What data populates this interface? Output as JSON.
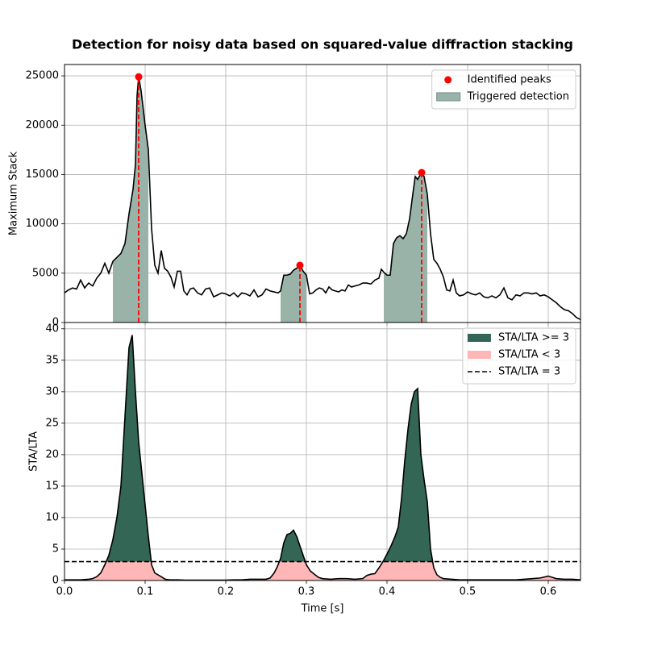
{
  "chart_data": [
    {
      "type": "line",
      "title": "Detection for noisy data based on squared-value diffraction stacking",
      "ylabel": "Maximum Stack",
      "x": [
        0.0,
        0.005,
        0.01,
        0.015,
        0.02,
        0.025,
        0.03,
        0.035,
        0.04,
        0.045,
        0.05,
        0.055,
        0.06,
        0.065,
        0.07,
        0.075,
        0.08,
        0.085,
        0.088,
        0.09,
        0.092,
        0.095,
        0.1,
        0.104,
        0.108,
        0.112,
        0.116,
        0.12,
        0.124,
        0.128,
        0.132,
        0.136,
        0.14,
        0.144,
        0.148,
        0.152,
        0.156,
        0.16,
        0.165,
        0.17,
        0.175,
        0.18,
        0.185,
        0.19,
        0.195,
        0.2,
        0.205,
        0.21,
        0.215,
        0.22,
        0.225,
        0.23,
        0.235,
        0.24,
        0.245,
        0.25,
        0.255,
        0.26,
        0.265,
        0.268,
        0.272,
        0.276,
        0.28,
        0.284,
        0.288,
        0.292,
        0.296,
        0.3,
        0.304,
        0.308,
        0.312,
        0.316,
        0.32,
        0.324,
        0.328,
        0.332,
        0.336,
        0.34,
        0.344,
        0.348,
        0.352,
        0.356,
        0.36,
        0.365,
        0.37,
        0.375,
        0.38,
        0.385,
        0.39,
        0.393,
        0.396,
        0.4,
        0.404,
        0.408,
        0.412,
        0.416,
        0.42,
        0.424,
        0.428,
        0.432,
        0.435,
        0.438,
        0.443,
        0.446,
        0.45,
        0.454,
        0.458,
        0.462,
        0.466,
        0.47,
        0.474,
        0.478,
        0.482,
        0.486,
        0.49,
        0.495,
        0.5,
        0.505,
        0.51,
        0.515,
        0.52,
        0.525,
        0.53,
        0.535,
        0.54,
        0.545,
        0.55,
        0.555,
        0.56,
        0.565,
        0.57,
        0.575,
        0.58,
        0.585,
        0.59,
        0.595,
        0.6,
        0.605,
        0.61,
        0.615,
        0.62,
        0.625,
        0.63,
        0.635,
        0.64
      ],
      "values": [
        3000,
        3300,
        3500,
        3400,
        4300,
        3500,
        4000,
        3700,
        4500,
        5000,
        6000,
        5000,
        6200,
        6600,
        7000,
        8000,
        11000,
        13500,
        16000,
        23000,
        24900,
        23500,
        20000,
        17500,
        9500,
        5800,
        5000,
        7300,
        5500,
        5200,
        4600,
        3600,
        5200,
        5200,
        3200,
        2800,
        3400,
        3500,
        3000,
        2800,
        3400,
        3500,
        2600,
        2800,
        3000,
        2900,
        2700,
        3000,
        2600,
        3000,
        2900,
        2700,
        3300,
        2600,
        2800,
        3400,
        3200,
        3100,
        3000,
        3200,
        4800,
        4800,
        4900,
        5300,
        5500,
        5800,
        5200,
        4800,
        2900,
        3000,
        3300,
        3500,
        3400,
        3000,
        3600,
        3300,
        3200,
        3100,
        3300,
        3200,
        3800,
        3600,
        3700,
        3800,
        4000,
        4000,
        3900,
        4300,
        4500,
        5400,
        5100,
        4800,
        4800,
        8000,
        8600,
        8800,
        8500,
        9000,
        10500,
        13000,
        14800,
        14500,
        15200,
        14800,
        13000,
        9000,
        6400,
        6000,
        5400,
        4600,
        3300,
        3200,
        4300,
        3000,
        2700,
        2800,
        3100,
        2900,
        2800,
        3000,
        2600,
        2500,
        2700,
        2500,
        2800,
        3500,
        2500,
        2300,
        2800,
        2700,
        3000,
        3000,
        2900,
        3000,
        2700,
        2800,
        2600,
        2300,
        2000,
        1600,
        1300,
        1200,
        900,
        500,
        300
      ],
      "color": "#000000",
      "peaks": {
        "name": "Identified peaks",
        "color": "#ff0000",
        "x": [
          0.092,
          0.292,
          0.443
        ],
        "values": [
          24900,
          5800,
          15200
        ]
      },
      "detections": {
        "name": "Triggered detection",
        "color": "#9ab3a8",
        "spans": [
          [
            0.06,
            0.104
          ],
          [
            0.268,
            0.3
          ],
          [
            0.396,
            0.45
          ]
        ]
      },
      "xlim": [
        0,
        0.64
      ],
      "xticks": [
        0,
        0.1,
        0.2,
        0.3,
        0.4,
        0.5,
        0.6
      ],
      "ylim": [
        0,
        26150
      ],
      "yticks": [
        0,
        5000,
        10000,
        15000,
        20000,
        25000
      ],
      "grid": true,
      "legend": "upper right"
    },
    {
      "type": "area",
      "xlabel": "Time [s]",
      "ylabel": "STA/LTA",
      "x": [
        0.0,
        0.01,
        0.02,
        0.03,
        0.035,
        0.04,
        0.045,
        0.05,
        0.055,
        0.06,
        0.065,
        0.07,
        0.075,
        0.08,
        0.084,
        0.088,
        0.092,
        0.096,
        0.1,
        0.104,
        0.108,
        0.112,
        0.116,
        0.12,
        0.125,
        0.13,
        0.14,
        0.15,
        0.16,
        0.17,
        0.18,
        0.19,
        0.2,
        0.21,
        0.22,
        0.23,
        0.24,
        0.25,
        0.255,
        0.26,
        0.264,
        0.268,
        0.272,
        0.276,
        0.28,
        0.284,
        0.288,
        0.292,
        0.296,
        0.3,
        0.305,
        0.31,
        0.315,
        0.32,
        0.33,
        0.34,
        0.35,
        0.36,
        0.37,
        0.375,
        0.38,
        0.385,
        0.39,
        0.395,
        0.4,
        0.405,
        0.41,
        0.414,
        0.418,
        0.422,
        0.426,
        0.43,
        0.434,
        0.438,
        0.442,
        0.446,
        0.45,
        0.454,
        0.458,
        0.462,
        0.466,
        0.47,
        0.48,
        0.49,
        0.5,
        0.52,
        0.54,
        0.56,
        0.58,
        0.59,
        0.6,
        0.605,
        0.61,
        0.62,
        0.63,
        0.64
      ],
      "values": [
        0.1,
        0.1,
        0.1,
        0.2,
        0.3,
        0.6,
        1.2,
        2.5,
        4,
        6.5,
        10,
        15,
        26,
        37,
        39,
        30,
        22,
        17,
        12,
        7,
        2.5,
        1.2,
        0.9,
        0.6,
        0.2,
        0.1,
        0.1,
        0.05,
        0.05,
        0.05,
        0.05,
        0.05,
        0.05,
        0.1,
        0.1,
        0.2,
        0.2,
        0.2,
        0.4,
        1.2,
        2.2,
        3.5,
        6,
        7.3,
        7.5,
        8,
        7,
        5.5,
        4,
        2.5,
        1.5,
        1,
        0.5,
        0.3,
        0.2,
        0.3,
        0.3,
        0.2,
        0.3,
        0.8,
        1,
        1.1,
        2,
        3,
        4.2,
        5.5,
        7,
        8.5,
        13,
        19,
        24,
        28,
        30,
        30.5,
        20,
        16,
        12.5,
        5,
        2,
        0.9,
        0.5,
        0.3,
        0.2,
        0.1,
        0.1,
        0.1,
        0.1,
        0.1,
        0.3,
        0.4,
        0.7,
        0.5,
        0.3,
        0.2,
        0.2,
        0.1
      ],
      "color": "#000000",
      "above": {
        "name": "STA/LTA >= 3",
        "color": "#336655"
      },
      "below": {
        "name": "STA/LTA < 3",
        "color": "#ffb6b6"
      },
      "threshold": {
        "name": "STA/LTA = 3",
        "value": 3,
        "color": "#000000"
      },
      "xlim": [
        0,
        0.64
      ],
      "xticks": [
        {
          "value": 0,
          "label": "0.0"
        },
        0.1,
        0.2,
        0.3,
        0.4,
        0.5,
        0.6
      ],
      "ylim": [
        0,
        41
      ],
      "yticks": [
        0,
        5,
        10,
        15,
        20,
        25,
        30,
        35,
        40
      ],
      "grid": true,
      "legend": "upper right"
    }
  ]
}
